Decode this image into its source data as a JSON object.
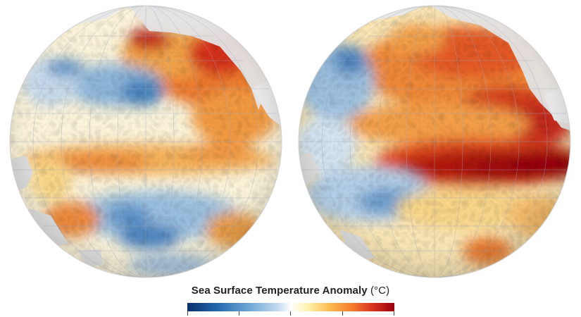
{
  "legend": {
    "title": "Sea Surface Temperature Anomaly",
    "unit": "(°C)",
    "colors": [
      "#08306b",
      "#2166ac",
      "#6fa8d6",
      "#c6dbef",
      "#ffffff",
      "#fff3b0",
      "#fdbf57",
      "#f47a2a",
      "#d7301f",
      "#99000d"
    ]
  },
  "globes": [
    {
      "name": "left",
      "pattern": "moderate warming north pacific, cool patches"
    },
    {
      "name": "right",
      "pattern": "strong el nino equatorial warming"
    }
  ]
}
